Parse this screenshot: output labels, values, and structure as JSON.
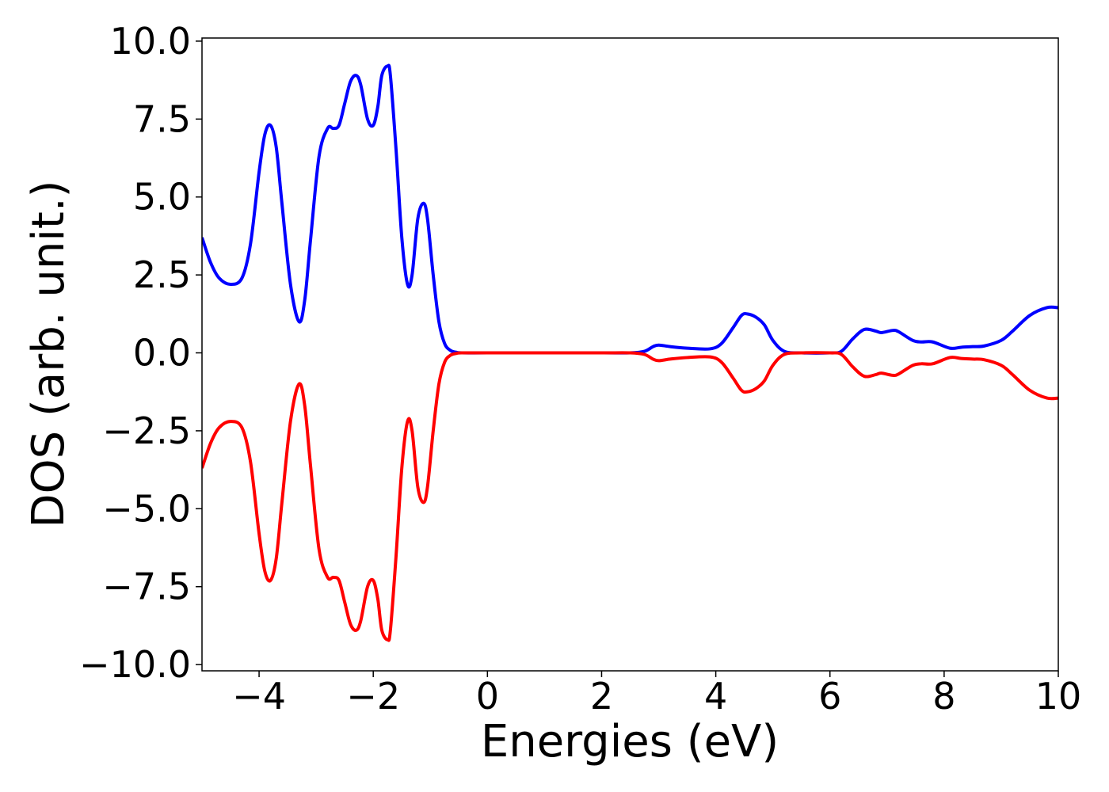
{
  "chart_data": {
    "type": "line",
    "title": "",
    "xlabel": "Energies (eV)",
    "ylabel": "DOS (arb. unit.)",
    "xlim": [
      -5,
      10
    ],
    "ylim": [
      -10.2,
      10.1
    ],
    "x_ticks": [
      -4,
      -2,
      0,
      2,
      4,
      6,
      8,
      10
    ],
    "x_tick_labels": [
      "−4",
      "−2",
      "0",
      "2",
      "4",
      "6",
      "8",
      "10"
    ],
    "y_ticks": [
      10.0,
      7.5,
      5.0,
      2.5,
      0.0,
      -2.5,
      -5.0,
      -7.5,
      -10.0
    ],
    "y_tick_labels": [
      "10.0",
      "7.5",
      "5.0",
      "2.5",
      "0.0",
      "−2.5",
      "−5.0",
      "−7.5",
      "−10.0"
    ],
    "grid": false,
    "series": [
      {
        "color": "#0000ff",
        "x": [
          -5.0,
          -4.85,
          -4.7,
          -4.5,
          -4.3,
          -4.15,
          -4.0,
          -3.9,
          -3.8,
          -3.7,
          -3.6,
          -3.45,
          -3.3,
          -3.2,
          -3.1,
          -2.95,
          -2.8,
          -2.7,
          -2.6,
          -2.5,
          -2.4,
          -2.3,
          -2.22,
          -2.1,
          -2.0,
          -1.92,
          -1.85,
          -1.75,
          -1.7,
          -1.6,
          -1.5,
          -1.4,
          -1.32,
          -1.22,
          -1.12,
          -1.05,
          -0.95,
          -0.85,
          -0.75,
          -0.65,
          -0.55,
          -0.45,
          0.0,
          1.0,
          2.0,
          2.5,
          2.75,
          2.9,
          3.0,
          3.2,
          3.5,
          3.9,
          4.1,
          4.3,
          4.45,
          4.55,
          4.7,
          4.85,
          5.0,
          5.2,
          5.5,
          6.0,
          6.2,
          6.4,
          6.6,
          6.8,
          6.9,
          7.1,
          7.2,
          7.45,
          7.6,
          7.8,
          8.1,
          8.3,
          8.5,
          8.7,
          9.0,
          9.2,
          9.5,
          9.8,
          10.0
        ],
        "y": [
          3.7,
          2.9,
          2.4,
          2.2,
          2.4,
          3.5,
          5.8,
          7.0,
          7.3,
          6.6,
          4.8,
          2.2,
          1.0,
          1.7,
          3.6,
          6.3,
          7.2,
          7.2,
          7.3,
          8.0,
          8.7,
          8.9,
          8.6,
          7.5,
          7.3,
          7.9,
          8.9,
          9.2,
          8.9,
          6.5,
          3.7,
          2.2,
          2.5,
          4.3,
          4.8,
          4.3,
          2.5,
          1.0,
          0.3,
          0.08,
          0.02,
          0.0,
          0.0,
          0.0,
          0.0,
          0.0,
          0.05,
          0.2,
          0.25,
          0.2,
          0.15,
          0.13,
          0.3,
          0.8,
          1.2,
          1.25,
          1.15,
          0.9,
          0.4,
          0.05,
          0.0,
          0.0,
          0.05,
          0.45,
          0.75,
          0.7,
          0.65,
          0.72,
          0.68,
          0.4,
          0.35,
          0.35,
          0.15,
          0.18,
          0.2,
          0.22,
          0.4,
          0.7,
          1.2,
          1.45,
          1.45
        ]
      },
      {
        "color": "#ff0000",
        "x": [
          -5.0,
          -4.85,
          -4.7,
          -4.5,
          -4.3,
          -4.15,
          -4.0,
          -3.9,
          -3.8,
          -3.7,
          -3.6,
          -3.45,
          -3.3,
          -3.2,
          -3.1,
          -2.95,
          -2.8,
          -2.7,
          -2.6,
          -2.5,
          -2.4,
          -2.3,
          -2.22,
          -2.1,
          -2.0,
          -1.92,
          -1.85,
          -1.75,
          -1.7,
          -1.6,
          -1.5,
          -1.4,
          -1.32,
          -1.22,
          -1.12,
          -1.05,
          -0.95,
          -0.85,
          -0.75,
          -0.65,
          -0.55,
          -0.45,
          0.0,
          1.0,
          2.0,
          2.5,
          2.75,
          2.9,
          3.0,
          3.2,
          3.5,
          3.9,
          4.1,
          4.3,
          4.45,
          4.55,
          4.7,
          4.85,
          5.0,
          5.2,
          5.5,
          6.0,
          6.2,
          6.4,
          6.6,
          6.8,
          6.9,
          7.1,
          7.2,
          7.45,
          7.6,
          7.8,
          8.1,
          8.3,
          8.5,
          8.7,
          9.0,
          9.2,
          9.5,
          9.8,
          10.0
        ],
        "y": [
          -3.7,
          -2.9,
          -2.4,
          -2.2,
          -2.4,
          -3.5,
          -5.8,
          -7.0,
          -7.3,
          -6.6,
          -4.8,
          -2.2,
          -1.0,
          -1.7,
          -3.6,
          -6.3,
          -7.2,
          -7.2,
          -7.3,
          -8.0,
          -8.7,
          -8.9,
          -8.6,
          -7.5,
          -7.3,
          -7.9,
          -8.9,
          -9.2,
          -8.9,
          -6.5,
          -3.7,
          -2.2,
          -2.5,
          -4.3,
          -4.8,
          -4.3,
          -2.5,
          -1.0,
          -0.3,
          -0.08,
          -0.02,
          0.0,
          0.0,
          0.0,
          0.0,
          0.0,
          -0.05,
          -0.2,
          -0.25,
          -0.2,
          -0.15,
          -0.13,
          -0.3,
          -0.8,
          -1.2,
          -1.25,
          -1.15,
          -0.9,
          -0.4,
          -0.05,
          0.0,
          0.0,
          -0.05,
          -0.45,
          -0.75,
          -0.7,
          -0.65,
          -0.72,
          -0.68,
          -0.4,
          -0.35,
          -0.35,
          -0.15,
          -0.18,
          -0.2,
          -0.22,
          -0.4,
          -0.7,
          -1.2,
          -1.45,
          -1.45
        ]
      }
    ]
  }
}
